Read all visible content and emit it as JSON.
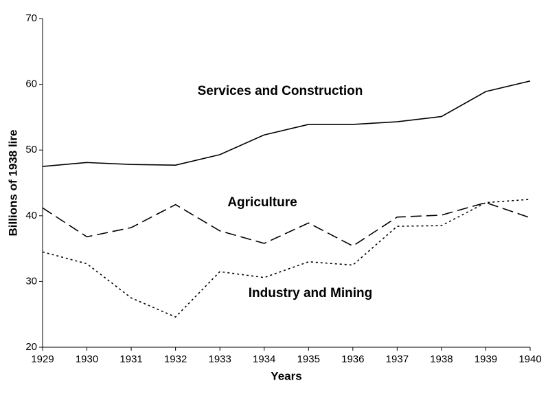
{
  "chart_data": {
    "type": "line",
    "x": [
      1929,
      1930,
      1931,
      1932,
      1933,
      1934,
      1935,
      1936,
      1937,
      1938,
      1939,
      1940
    ],
    "series": [
      {
        "name": "Services and Construction",
        "color": "#000000",
        "dash": "solid",
        "values": [
          47.5,
          48.1,
          47.8,
          47.7,
          49.3,
          52.3,
          53.9,
          53.9,
          54.3,
          55.1,
          58.9,
          60.5
        ]
      },
      {
        "name": "Agriculture",
        "color": "#000000",
        "dash": "dashed",
        "values": [
          41.2,
          36.8,
          38.2,
          41.7,
          37.7,
          35.8,
          38.9,
          35.4,
          39.8,
          40.1,
          42.0,
          39.7
        ]
      },
      {
        "name": "Industry and Mining",
        "color": "#000000",
        "dash": "dotted",
        "values": [
          34.5,
          32.7,
          27.5,
          24.6,
          31.5,
          30.6,
          33.0,
          32.5,
          38.4,
          38.5,
          42.0,
          42.5
        ]
      }
    ],
    "xlabel": "Years",
    "ylabel": "Billions of 1938 lire",
    "xlim": [
      1929,
      1940
    ],
    "xticks": [
      1929,
      1930,
      1931,
      1932,
      1933,
      1934,
      1935,
      1936,
      1937,
      1938,
      1939,
      1940
    ],
    "ylim": [
      20,
      70
    ],
    "yticks": [
      20,
      30,
      40,
      50,
      60,
      70
    ],
    "grid": false
  }
}
